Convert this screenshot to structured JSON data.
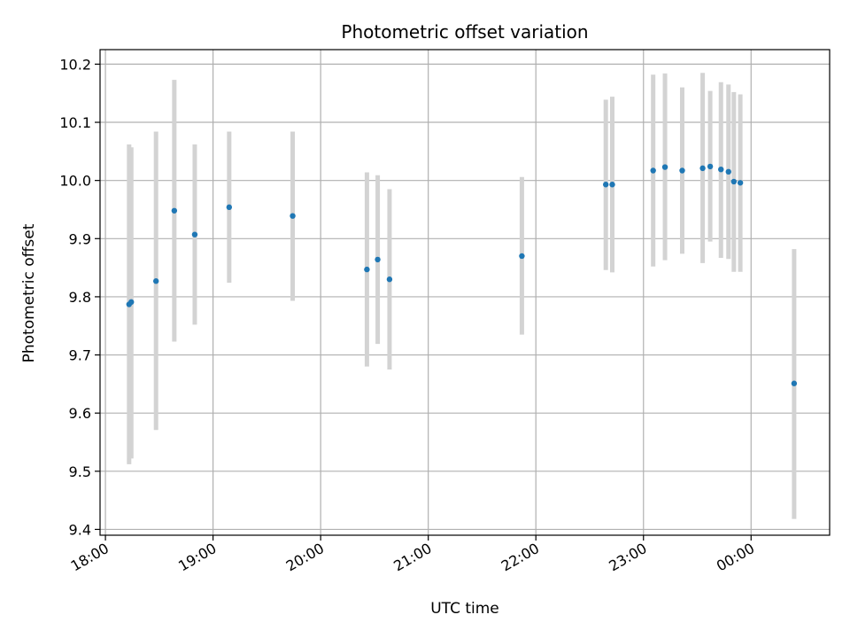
{
  "chart_data": {
    "type": "scatter",
    "title": "Photometric offset variation",
    "xlabel": "UTC time",
    "ylabel": "Photometric offset",
    "x_unit": "time of day, hours since 18:00 UTC",
    "xlim": [
      -0.05,
      6.73
    ],
    "ylim": [
      9.39,
      10.225
    ],
    "grid": true,
    "x_ticks": [
      {
        "value": 0,
        "label": "18:00"
      },
      {
        "value": 1,
        "label": "19:00"
      },
      {
        "value": 2,
        "label": "20:00"
      },
      {
        "value": 3,
        "label": "21:00"
      },
      {
        "value": 4,
        "label": "22:00"
      },
      {
        "value": 5,
        "label": "23:00"
      },
      {
        "value": 6,
        "label": "00:00"
      }
    ],
    "y_ticks": [
      {
        "value": 9.4,
        "label": "9.4"
      },
      {
        "value": 9.5,
        "label": "9.5"
      },
      {
        "value": 9.6,
        "label": "9.6"
      },
      {
        "value": 9.7,
        "label": "9.7"
      },
      {
        "value": 9.8,
        "label": "9.8"
      },
      {
        "value": 9.9,
        "label": "9.9"
      },
      {
        "value": 10.0,
        "label": "10.0"
      },
      {
        "value": 10.1,
        "label": "10.1"
      },
      {
        "value": 10.2,
        "label": "10.2"
      }
    ],
    "marker_color": "#1f77b4",
    "errorbar_color": "#d3d3d3",
    "points": [
      {
        "x": 0.22,
        "y": 9.787,
        "ylow": 9.512,
        "yhigh": 10.062
      },
      {
        "x": 0.24,
        "y": 9.791,
        "ylow": 9.522,
        "yhigh": 10.057
      },
      {
        "x": 0.47,
        "y": 9.827,
        "ylow": 9.571,
        "yhigh": 10.084
      },
      {
        "x": 0.64,
        "y": 9.948,
        "ylow": 9.723,
        "yhigh": 10.173
      },
      {
        "x": 0.83,
        "y": 9.907,
        "ylow": 9.752,
        "yhigh": 10.062
      },
      {
        "x": 1.15,
        "y": 9.954,
        "ylow": 9.824,
        "yhigh": 10.084
      },
      {
        "x": 1.74,
        "y": 9.939,
        "ylow": 9.793,
        "yhigh": 10.084
      },
      {
        "x": 2.43,
        "y": 9.847,
        "ylow": 9.68,
        "yhigh": 10.014
      },
      {
        "x": 2.53,
        "y": 9.864,
        "ylow": 9.719,
        "yhigh": 10.009
      },
      {
        "x": 2.64,
        "y": 9.83,
        "ylow": 9.675,
        "yhigh": 9.985
      },
      {
        "x": 3.87,
        "y": 9.87,
        "ylow": 9.735,
        "yhigh": 10.006
      },
      {
        "x": 4.65,
        "y": 9.993,
        "ylow": 9.846,
        "yhigh": 10.139
      },
      {
        "x": 4.71,
        "y": 9.993,
        "ylow": 9.842,
        "yhigh": 10.144
      },
      {
        "x": 5.09,
        "y": 10.017,
        "ylow": 9.852,
        "yhigh": 10.182
      },
      {
        "x": 5.2,
        "y": 10.023,
        "ylow": 9.863,
        "yhigh": 10.184
      },
      {
        "x": 5.36,
        "y": 10.017,
        "ylow": 9.874,
        "yhigh": 10.16
      },
      {
        "x": 5.55,
        "y": 10.021,
        "ylow": 9.858,
        "yhigh": 10.185
      },
      {
        "x": 5.62,
        "y": 10.024,
        "ylow": 9.895,
        "yhigh": 10.154
      },
      {
        "x": 5.72,
        "y": 10.019,
        "ylow": 9.867,
        "yhigh": 10.169
      },
      {
        "x": 5.79,
        "y": 10.015,
        "ylow": 9.865,
        "yhigh": 10.165
      },
      {
        "x": 5.84,
        "y": 9.998,
        "ylow": 9.843,
        "yhigh": 10.152
      },
      {
        "x": 5.9,
        "y": 9.996,
        "ylow": 9.843,
        "yhigh": 10.148
      },
      {
        "x": 6.4,
        "y": 9.651,
        "ylow": 9.418,
        "yhigh": 9.882
      }
    ]
  }
}
